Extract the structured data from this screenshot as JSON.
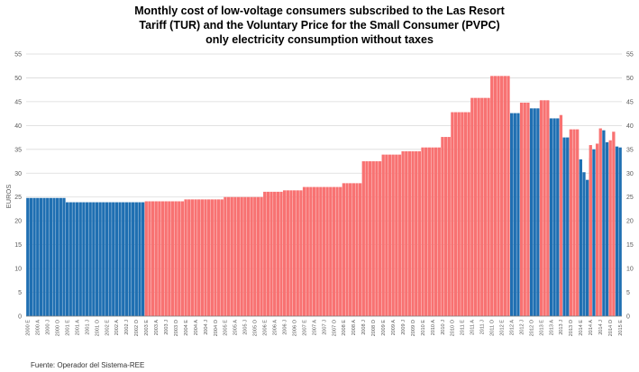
{
  "chart_data": {
    "type": "bar",
    "title": [
      "Monthly cost of low-voltage consumers subscribed to the Las Resort",
      "Tariff (TUR) and the Voluntary Price for the Small Consumer (PVPC)",
      "only electricity consumption without taxes"
    ],
    "ylabel": "EUROS",
    "source": "Fuente: Operador del Sistema-REE",
    "ylim": [
      0,
      55
    ],
    "yticks": [
      0,
      5,
      10,
      15,
      20,
      25,
      30,
      35,
      40,
      45,
      50,
      55
    ],
    "grid": true,
    "colors": {
      "blue": "#1f6fb2",
      "red": "#f87272",
      "grid": "#d9d9d9",
      "axis": "#7f7f7f"
    },
    "x_tick_labels": [
      "2000 E",
      "2000 A",
      "2000 J",
      "2000 O",
      "2001 E",
      "2001 A",
      "2001 J",
      "2001 O",
      "2002 E",
      "2002 A",
      "2002 J",
      "2002 O",
      "2003 E",
      "2003 A",
      "2003 J",
      "2003 O",
      "2004 E",
      "2004 A",
      "2004 J",
      "2004 O",
      "2005 E",
      "2005 A",
      "2005 J",
      "2005 O",
      "2006 E",
      "2006 A",
      "2006 J",
      "2006 O",
      "2007 E",
      "2007 A",
      "2007 J",
      "2007 O",
      "2008 E",
      "2008 A",
      "2008 J",
      "2008 O",
      "2009 E",
      "2009 A",
      "2009 J",
      "2009 O",
      "2010 E",
      "2010 A",
      "2010 J",
      "2010 O",
      "2011 E",
      "2011 A",
      "2011 J",
      "2011 O",
      "2012 E",
      "2012 A",
      "2012 J",
      "2012 O",
      "2013 E",
      "2013 A",
      "2013 J",
      "2013 O",
      "2014 E",
      "2014 A",
      "2014 J",
      "2014 O",
      "2015 E"
    ],
    "series": [
      {
        "color": "blue",
        "segments": [
          {
            "from": "2000-01",
            "to": "2000-12",
            "value": 24.8
          },
          {
            "from": "2001-01",
            "to": "2002-12",
            "value": 23.9
          },
          {
            "from": "2012-04",
            "to": "2012-06",
            "value": 42.6
          },
          {
            "from": "2012-10",
            "to": "2012-12",
            "value": 43.6
          },
          {
            "from": "2013-04",
            "to": "2013-06",
            "value": 41.5
          },
          {
            "from": "2013-08",
            "to": "2013-09",
            "value": 37.5
          },
          {
            "from": "2014-01",
            "to": "2014-01",
            "value": 32.9
          },
          {
            "from": "2014-02",
            "to": "2014-02",
            "value": 30.2
          },
          {
            "from": "2014-03",
            "to": "2014-03",
            "value": 28.6
          },
          {
            "from": "2014-05",
            "to": "2014-05",
            "value": 35.0
          },
          {
            "from": "2014-08",
            "to": "2014-08",
            "value": 39.0
          },
          {
            "from": "2014-09",
            "to": "2014-09",
            "value": 36.5
          },
          {
            "from": "2014-12",
            "to": "2014-12",
            "value": 35.6
          },
          {
            "from": "2015-01",
            "to": "2015-01",
            "value": 35.4
          }
        ]
      },
      {
        "color": "red",
        "segments": [
          {
            "from": "2003-01",
            "to": "2003-12",
            "value": 24.1
          },
          {
            "from": "2004-01",
            "to": "2004-12",
            "value": 24.5
          },
          {
            "from": "2005-01",
            "to": "2005-12",
            "value": 25.0
          },
          {
            "from": "2006-01",
            "to": "2006-06",
            "value": 26.1
          },
          {
            "from": "2006-07",
            "to": "2006-12",
            "value": 26.4
          },
          {
            "from": "2007-01",
            "to": "2007-12",
            "value": 27.1
          },
          {
            "from": "2008-01",
            "to": "2008-06",
            "value": 27.9
          },
          {
            "from": "2008-07",
            "to": "2008-12",
            "value": 32.5
          },
          {
            "from": "2009-01",
            "to": "2009-06",
            "value": 33.9
          },
          {
            "from": "2009-07",
            "to": "2009-12",
            "value": 34.6
          },
          {
            "from": "2010-01",
            "to": "2010-06",
            "value": 35.4
          },
          {
            "from": "2010-07",
            "to": "2010-09",
            "value": 37.6
          },
          {
            "from": "2010-10",
            "to": "2010-12",
            "value": 42.8
          },
          {
            "from": "2011-01",
            "to": "2011-03",
            "value": 42.8
          },
          {
            "from": "2011-04",
            "to": "2011-09",
            "value": 45.8
          },
          {
            "from": "2011-10",
            "to": "2011-12",
            "value": 50.4
          },
          {
            "from": "2012-01",
            "to": "2012-03",
            "value": 50.4
          },
          {
            "from": "2012-07",
            "to": "2012-09",
            "value": 44.8
          },
          {
            "from": "2013-01",
            "to": "2013-03",
            "value": 45.3
          },
          {
            "from": "2013-07",
            "to": "2013-07",
            "value": 42.2
          },
          {
            "from": "2013-10",
            "to": "2013-12",
            "value": 39.2
          },
          {
            "from": "2014-04",
            "to": "2014-04",
            "value": 33.2
          },
          {
            "from": "2014-04",
            "to": "2014-04",
            "value": 35.9
          },
          {
            "from": "2014-06",
            "to": "2014-06",
            "value": 36.2
          },
          {
            "from": "2014-07",
            "to": "2014-07",
            "value": 39.4
          },
          {
            "from": "2014-10",
            "to": "2014-10",
            "value": 36.9
          },
          {
            "from": "2014-11",
            "to": "2014-11",
            "value": 38.7
          }
        ]
      }
    ]
  }
}
